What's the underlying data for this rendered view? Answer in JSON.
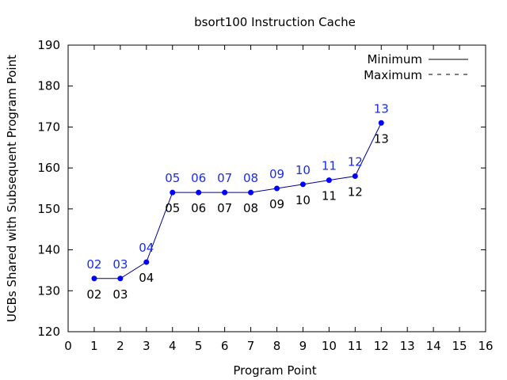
{
  "chart_data": {
    "type": "line",
    "title": "bsort100 Instruction Cache",
    "xlabel": "Program Point",
    "ylabel": "UCBs Shared with Subsequent Program Point",
    "xlim": [
      0,
      16
    ],
    "ylim": [
      120,
      190
    ],
    "x_ticks": [
      0,
      1,
      2,
      3,
      4,
      5,
      6,
      7,
      8,
      9,
      10,
      11,
      12,
      13,
      14,
      15,
      16
    ],
    "y_ticks": [
      120,
      130,
      140,
      150,
      160,
      170,
      180,
      190
    ],
    "legend_position": "top-right",
    "series": [
      {
        "name": "Minimum",
        "style": "solid",
        "color": "#00008b",
        "x": [
          1,
          2,
          3,
          4,
          5,
          6,
          7,
          8,
          9,
          10,
          11,
          12
        ],
        "y": [
          133,
          133,
          137,
          154,
          154,
          154,
          154,
          155,
          156,
          157,
          158,
          171
        ],
        "labels_above": [
          "02",
          "03",
          "04",
          "05",
          "06",
          "07",
          "08",
          "09",
          "10",
          "11",
          "12",
          "13"
        ],
        "labels_below": [
          "02",
          "03",
          "04",
          "05",
          "06",
          "07",
          "08",
          "09",
          "10",
          "11",
          "12",
          "13"
        ],
        "labels_below_shown": [
          true,
          true,
          true,
          true,
          true,
          true,
          true,
          true,
          true,
          true,
          true,
          true
        ]
      },
      {
        "name": "Maximum",
        "style": "dashed",
        "color": "#000000",
        "x": [],
        "y": []
      }
    ],
    "marker_color": "#0000ff",
    "label_above_color": "#1a2be8"
  }
}
